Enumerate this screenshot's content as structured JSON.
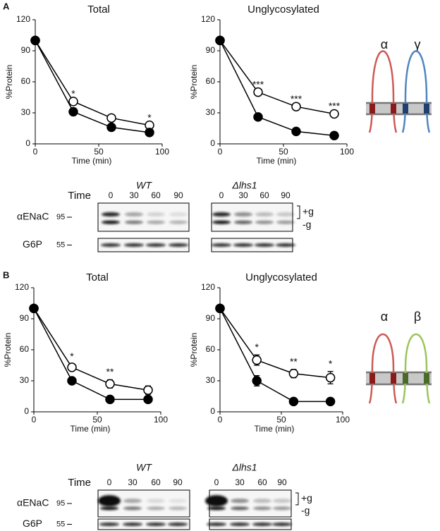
{
  "panel_labels": [
    "A",
    "B"
  ],
  "chart_data": [
    {
      "type": "line",
      "title": "Total",
      "x_label": "Time (min)",
      "y_label": "%Protein",
      "x": [
        0,
        30,
        60,
        90
      ],
      "xlim": [
        0,
        100
      ],
      "xticks": [
        0,
        50,
        100
      ],
      "ylim": [
        0,
        120
      ],
      "yticks": [
        0,
        30,
        60,
        90,
        120
      ],
      "series": [
        {
          "color": "#000000",
          "marker_fill": "#ffffff",
          "values": [
            100,
            41,
            25,
            18
          ]
        },
        {
          "color": "#000000",
          "marker_fill": "#000000",
          "values": [
            100,
            31,
            16,
            11
          ]
        }
      ],
      "annotations": [
        {
          "text": "*",
          "x": 30
        },
        {
          "text": "*",
          "x": 90
        }
      ]
    },
    {
      "type": "line",
      "title": "Unglycosylated",
      "x_label": "Time (min)",
      "y_label": "%Protein",
      "x": [
        0,
        30,
        60,
        90
      ],
      "xlim": [
        0,
        100
      ],
      "xticks": [
        0,
        50,
        100
      ],
      "ylim": [
        0,
        120
      ],
      "yticks": [
        0,
        30,
        60,
        90,
        120
      ],
      "series": [
        {
          "color": "#000000",
          "marker_fill": "#ffffff",
          "values": [
            100,
            50,
            36,
            29
          ]
        },
        {
          "color": "#000000",
          "marker_fill": "#000000",
          "values": [
            100,
            26,
            12,
            8
          ]
        }
      ],
      "annotations": [
        {
          "text": "***",
          "x": 30
        },
        {
          "text": "***",
          "x": 60
        },
        {
          "text": "***",
          "x": 90
        }
      ]
    },
    {
      "type": "line",
      "title": "Total",
      "x_label": "Time (min)",
      "y_label": "%Protein",
      "x": [
        0,
        30,
        60,
        90
      ],
      "xlim": [
        0,
        100
      ],
      "xticks": [
        0,
        50,
        100
      ],
      "ylim": [
        0,
        120
      ],
      "yticks": [
        0,
        30,
        60,
        90,
        120
      ],
      "series": [
        {
          "color": "#000000",
          "marker_fill": "#ffffff",
          "values": [
            100,
            43,
            27,
            21
          ],
          "errors": [
            0,
            3,
            4,
            4
          ]
        },
        {
          "color": "#000000",
          "marker_fill": "#000000",
          "values": [
            100,
            30,
            12,
            12
          ],
          "errors": [
            0,
            3,
            1,
            1
          ]
        }
      ],
      "annotations": [
        {
          "text": "*",
          "x": 30
        },
        {
          "text": "**",
          "x": 60
        }
      ]
    },
    {
      "type": "line",
      "title": "Unglycosylated",
      "x_label": "Time (min)",
      "y_label": "%Protein",
      "x": [
        0,
        30,
        60,
        90
      ],
      "xlim": [
        0,
        100
      ],
      "xticks": [
        0,
        50,
        100
      ],
      "ylim": [
        0,
        120
      ],
      "yticks": [
        0,
        30,
        60,
        90,
        120
      ],
      "series": [
        {
          "color": "#000000",
          "marker_fill": "#ffffff",
          "values": [
            100,
            50,
            37,
            33
          ],
          "errors": [
            0,
            5,
            4,
            6
          ]
        },
        {
          "color": "#000000",
          "marker_fill": "#000000",
          "values": [
            100,
            30,
            10,
            10
          ],
          "errors": [
            0,
            5,
            1,
            1
          ]
        }
      ],
      "annotations": [
        {
          "text": "*",
          "x": 30
        },
        {
          "text": "**",
          "x": 60
        },
        {
          "text": "*",
          "x": 90
        }
      ]
    }
  ],
  "blots": [
    {
      "title": "WT",
      "time_label": "Time",
      "lanes": [
        "0",
        "30",
        "60",
        "90"
      ],
      "protein": "αENaC",
      "protein_mw": "95",
      "control": "G6P",
      "control_mw": "55"
    },
    {
      "title": "Δlhs1",
      "lanes": [
        "0",
        "30",
        "60",
        "90"
      ],
      "band_labels": [
        "+g",
        "-g"
      ]
    },
    {
      "title": "WT",
      "time_label": "Time",
      "lanes": [
        "0",
        "30",
        "60",
        "90"
      ],
      "protein": "αENaC",
      "protein_mw": "95",
      "control": "G6P",
      "control_mw": "55"
    },
    {
      "title": "Δlhs1",
      "lanes": [
        "0",
        "30",
        "60",
        "90"
      ],
      "band_labels": [
        "+g",
        "-g"
      ]
    }
  ],
  "diagrams": [
    {
      "subunits": [
        "α",
        "γ"
      ],
      "colors": [
        "#cc5a57",
        "#4f86c0"
      ],
      "membrane_colors": [
        "#8b1a1a",
        "#1f3f6e"
      ]
    },
    {
      "subunits": [
        "α",
        "β"
      ],
      "colors": [
        "#cc5a57",
        "#9cc45a"
      ],
      "membrane_colors": [
        "#8b1a1a",
        "#4a6a2a"
      ]
    }
  ]
}
